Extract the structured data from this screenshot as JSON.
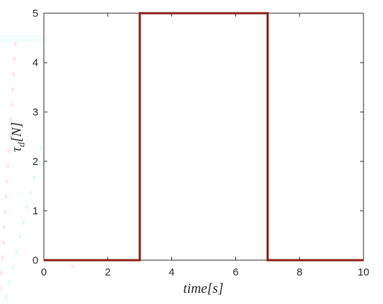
{
  "chart_data": {
    "type": "line",
    "title": "",
    "xlabel": "time[s]",
    "ylabel": "τ_d[N]",
    "xlim": [
      0,
      10
    ],
    "ylim": [
      0,
      5
    ],
    "xticks": [
      "0",
      "2",
      "4",
      "6",
      "8",
      "10"
    ],
    "yticks": [
      "0",
      "1",
      "2",
      "3",
      "4",
      "5"
    ],
    "grid": false,
    "legend": "none",
    "series": [
      {
        "color": "#8b1a10",
        "x": [
          0,
          3,
          3,
          7,
          7,
          10
        ],
        "y": [
          0,
          0,
          5,
          5,
          0,
          0
        ]
      }
    ]
  }
}
